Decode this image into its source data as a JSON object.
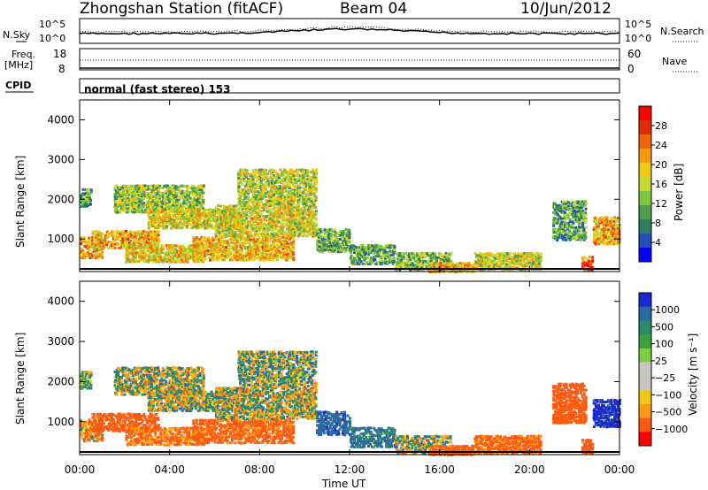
{
  "header": {
    "station": "Zhongshan Station (fitACF)",
    "beam": "Beam 04",
    "date": "10/Jun/2012"
  },
  "top_panel": {
    "left_label": "N.Sky",
    "right_label": "N.Search",
    "ticks_left": [
      "10^5",
      "10^0"
    ],
    "ticks_right": [
      "10^5",
      "10^0"
    ]
  },
  "freq_panel": {
    "left_label_1": "Freq.",
    "left_label_2": "[MHz]",
    "right_label": "Nave",
    "ticks_left": [
      "18",
      "8"
    ],
    "ticks_right": [
      "60",
      "0"
    ]
  },
  "cpid": {
    "label": "CPID",
    "mode": "normal (fast stereo) 153"
  },
  "x_axis": {
    "title": "Time UT",
    "ticks": [
      "00:00",
      "04:00",
      "08:00",
      "12:00",
      "16:00",
      "20:00",
      "00:00"
    ]
  },
  "chart_data": [
    {
      "type": "heatmap",
      "quantity": "Power",
      "ylabel": "Slant Range [km]",
      "xlabel": "Time UT",
      "ylim": [
        180,
        4500
      ],
      "y_ticks": [
        "1000",
        "2000",
        "3000",
        "4000"
      ],
      "colorbar_label": "Power [dB]",
      "colorbar_ticks": [
        "28",
        "24",
        "20",
        "16",
        "12",
        "8",
        "4"
      ],
      "colorbar_colors": [
        "#0000ff",
        "#2451b8",
        "#2b7f5a",
        "#4f9d4f",
        "#7fc63f",
        "#c8d630",
        "#f2c80a",
        "#f79a0a",
        "#f0650a",
        "#e52a08",
        "#ff0000"
      ],
      "patches": [
        {
          "t": [
            0.0,
            1.0
          ],
          "r": [
            550,
            1100
          ],
          "v": 20
        },
        {
          "t": [
            0.0,
            0.5
          ],
          "r": [
            1850,
            2300
          ],
          "v": 10
        },
        {
          "t": [
            0.5,
            3.5
          ],
          "r": [
            800,
            1250
          ],
          "v": 20
        },
        {
          "t": [
            2.0,
            5.5
          ],
          "r": [
            450,
            900
          ],
          "v": 18
        },
        {
          "t": [
            1.5,
            5.5
          ],
          "r": [
            1700,
            2400
          ],
          "v": 13
        },
        {
          "t": [
            3.0,
            7.0
          ],
          "r": [
            1300,
            1800
          ],
          "v": 16
        },
        {
          "t": [
            5.0,
            9.5
          ],
          "r": [
            500,
            1100
          ],
          "v": 19
        },
        {
          "t": [
            6.0,
            10.5
          ],
          "r": [
            1100,
            1900
          ],
          "v": 16
        },
        {
          "t": [
            7.0,
            10.5
          ],
          "r": [
            1900,
            2800
          ],
          "v": 14
        },
        {
          "t": [
            10.5,
            12.0
          ],
          "r": [
            700,
            1300
          ],
          "v": 10
        },
        {
          "t": [
            12.0,
            14.0
          ],
          "r": [
            400,
            900
          ],
          "v": 9
        },
        {
          "t": [
            14.0,
            16.5
          ],
          "r": [
            230,
            700
          ],
          "v": 12
        },
        {
          "t": [
            15.5,
            17.5
          ],
          "r": [
            200,
            450
          ],
          "v": 20
        },
        {
          "t": [
            17.5,
            20.5
          ],
          "r": [
            250,
            700
          ],
          "v": 15
        },
        {
          "t": [
            21.0,
            22.5
          ],
          "r": [
            1000,
            2000
          ],
          "v": 9
        },
        {
          "t": [
            22.3,
            22.8
          ],
          "r": [
            250,
            600
          ],
          "v": 26
        },
        {
          "t": [
            22.8,
            24.0
          ],
          "r": [
            900,
            1600
          ],
          "v": 20
        }
      ]
    },
    {
      "type": "heatmap",
      "quantity": "Velocity",
      "ylabel": "Slant Range [km]",
      "xlabel": "Time UT",
      "ylim": [
        180,
        4500
      ],
      "y_ticks": [
        "1000",
        "2000",
        "3000",
        "4000"
      ],
      "colorbar_label": "Velocity [m s⁻¹]",
      "colorbar_ticks": [
        "1000",
        "500",
        "100",
        "25",
        "−25",
        "−100",
        "−500",
        "−1000"
      ],
      "colorbar_colors": [
        "#ff0000",
        "#ff5a10",
        "#ff9a10",
        "#f5c810",
        "#c8c8c0",
        "#c8c8c0",
        "#7fd040",
        "#3ea040",
        "#2a8a6a",
        "#2a6aa0",
        "#1a2ad0"
      ],
      "patches": [
        {
          "t": [
            0.0,
            1.0
          ],
          "r": [
            550,
            1100
          ],
          "v": -100
        },
        {
          "t": [
            0.0,
            0.5
          ],
          "r": [
            1850,
            2300
          ],
          "v": 0
        },
        {
          "t": [
            0.5,
            3.5
          ],
          "r": [
            800,
            1250
          ],
          "v": -250
        },
        {
          "t": [
            2.0,
            5.5
          ],
          "r": [
            450,
            900
          ],
          "v": -150
        },
        {
          "t": [
            1.5,
            5.5
          ],
          "r": [
            1700,
            2400
          ],
          "v": 0
        },
        {
          "t": [
            3.0,
            7.0
          ],
          "r": [
            1300,
            1800
          ],
          "v": 0
        },
        {
          "t": [
            5.0,
            9.5
          ],
          "r": [
            500,
            1100
          ],
          "v": -200
        },
        {
          "t": [
            6.0,
            10.5
          ],
          "r": [
            1100,
            1900
          ],
          "v": 0
        },
        {
          "t": [
            7.0,
            10.5
          ],
          "r": [
            1900,
            2800
          ],
          "v": 40
        },
        {
          "t": [
            10.5,
            12.0
          ],
          "r": [
            700,
            1300
          ],
          "v": 400
        },
        {
          "t": [
            12.0,
            14.0
          ],
          "r": [
            400,
            900
          ],
          "v": 150
        },
        {
          "t": [
            14.0,
            16.5
          ],
          "r": [
            230,
            700
          ],
          "v": 0
        },
        {
          "t": [
            15.5,
            17.5
          ],
          "r": [
            200,
            450
          ],
          "v": -250
        },
        {
          "t": [
            17.5,
            20.5
          ],
          "r": [
            250,
            700
          ],
          "v": -200
        },
        {
          "t": [
            21.0,
            22.5
          ],
          "r": [
            1000,
            2000
          ],
          "v": -300
        },
        {
          "t": [
            22.3,
            22.8
          ],
          "r": [
            250,
            600
          ],
          "v": -250
        },
        {
          "t": [
            22.8,
            24.0
          ],
          "r": [
            900,
            1600
          ],
          "v": 600
        }
      ]
    }
  ]
}
